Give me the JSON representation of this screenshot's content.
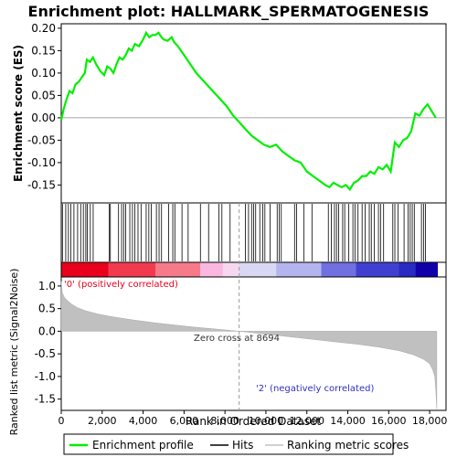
{
  "chart_data": {
    "type": "line",
    "title": "Enrichment plot: HALLMARK_SPERMATOGENESIS",
    "top_panel": {
      "ylabel": "Enrichment score (ES)",
      "ylim": [
        -0.19,
        0.21
      ],
      "yticks": [
        "0.20",
        "0.15",
        "0.10",
        "0.05",
        "0.00",
        "-0.05",
        "-0.10",
        "-0.15"
      ],
      "ytick_values": [
        0.2,
        0.15,
        0.1,
        0.05,
        0.0,
        -0.05,
        -0.1,
        -0.15
      ],
      "es_profile": {
        "name": "Enrichment profile",
        "x": [
          0,
          120,
          250,
          400,
          550,
          700,
          850,
          1000,
          1150,
          1250,
          1400,
          1550,
          1700,
          1900,
          2100,
          2250,
          2400,
          2550,
          2700,
          2850,
          3000,
          3150,
          3300,
          3450,
          3600,
          3800,
          4000,
          4150,
          4300,
          4450,
          4600,
          4750,
          4900,
          5000,
          5200,
          5400,
          5500,
          5700,
          6000,
          6300,
          6600,
          6900,
          7200,
          7500,
          7800,
          8100,
          8400,
          8700,
          9000,
          9300,
          9600,
          9900,
          10200,
          10500,
          10800,
          11100,
          11400,
          11700,
          12000,
          12300,
          12600,
          12900,
          13100,
          13300,
          13500,
          13700,
          13900,
          14100,
          14300,
          14500,
          14700,
          14900,
          15100,
          15300,
          15500,
          15700,
          15900,
          16100,
          16300,
          16500,
          16700,
          16900,
          17100,
          17300,
          17500,
          17700,
          17900,
          18100,
          18300
        ],
        "y": [
          -0.005,
          0.02,
          0.04,
          0.06,
          0.055,
          0.075,
          0.08,
          0.09,
          0.1,
          0.13,
          0.125,
          0.135,
          0.12,
          0.105,
          0.095,
          0.115,
          0.11,
          0.1,
          0.12,
          0.135,
          0.13,
          0.14,
          0.155,
          0.15,
          0.165,
          0.16,
          0.175,
          0.19,
          0.18,
          0.185,
          0.185,
          0.19,
          0.18,
          0.175,
          0.172,
          0.18,
          0.17,
          0.16,
          0.14,
          0.12,
          0.1,
          0.085,
          0.07,
          0.055,
          0.04,
          0.025,
          0.005,
          -0.01,
          -0.025,
          -0.04,
          -0.05,
          -0.06,
          -0.065,
          -0.06,
          -0.075,
          -0.085,
          -0.095,
          -0.1,
          -0.12,
          -0.13,
          -0.14,
          -0.15,
          -0.155,
          -0.145,
          -0.15,
          -0.155,
          -0.15,
          -0.16,
          -0.145,
          -0.14,
          -0.13,
          -0.13,
          -0.12,
          -0.125,
          -0.11,
          -0.115,
          -0.105,
          -0.12,
          -0.055,
          -0.065,
          -0.05,
          -0.045,
          -0.03,
          0.01,
          0.005,
          0.02,
          0.03,
          0.015,
          0.0
        ],
        "color": "#00ee00"
      }
    },
    "hits": {
      "name": "Hits",
      "positions": [
        60,
        220,
        350,
        470,
        620,
        800,
        950,
        1080,
        1200,
        1270,
        1420,
        1560,
        2350,
        2400,
        2800,
        2950,
        3050,
        3150,
        3350,
        3480,
        3600,
        3750,
        3900,
        4150,
        4280,
        4400,
        4650,
        4780,
        4900,
        5250,
        5450,
        5550,
        5900,
        6200,
        6800,
        7200,
        7700,
        7850,
        8250,
        9000,
        9150,
        9300,
        9400,
        9500,
        9700,
        9850,
        9950,
        10200,
        10550,
        10650,
        10750,
        11400,
        11500,
        11850,
        12250,
        13050,
        13200,
        13350,
        13450,
        13550,
        13750,
        13850,
        14050,
        14250,
        14350,
        14500,
        14700,
        14850,
        15050,
        15150,
        15300,
        15500,
        15600,
        15750,
        16200,
        16300,
        16450,
        16750,
        16950,
        17050,
        17150,
        17250,
        17600,
        17700,
        17800
      ]
    },
    "ranked_metric": {
      "name": "Ranking metric scores",
      "ylabel": "Ranked list metric (Signal2Noise)",
      "ylim": [
        -1.75,
        1.2
      ],
      "yticks": [
        "1.0",
        "0.5",
        "0.0",
        "-0.5",
        "-1.0",
        "-1.5"
      ],
      "ytick_values": [
        1.0,
        0.5,
        0.0,
        -0.5,
        -1.0,
        -1.5
      ],
      "x": [
        0,
        50,
        150,
        300,
        500,
        800,
        1200,
        1800,
        2500,
        3500,
        4500,
        5500,
        6500,
        7500,
        8694,
        9500,
        10500,
        11500,
        12500,
        13500,
        14500,
        15500,
        16500,
        17200,
        17700,
        18000,
        18150,
        18250,
        18300,
        18350
      ],
      "y": [
        1.1,
        0.85,
        0.75,
        0.68,
        0.6,
        0.52,
        0.45,
        0.38,
        0.32,
        0.25,
        0.19,
        0.14,
        0.09,
        0.05,
        0.0,
        -0.04,
        -0.09,
        -0.14,
        -0.19,
        -0.24,
        -0.29,
        -0.35,
        -0.43,
        -0.52,
        -0.62,
        -0.72,
        -0.85,
        -1.0,
        -1.3,
        -1.72
      ],
      "color": "#c0c0c0"
    },
    "xaxis": {
      "label": "Rank in Ordered Dataset",
      "xlim": [
        0,
        18800
      ],
      "ticks": [
        "0",
        "2,000",
        "4,000",
        "6,000",
        "8,000",
        "10,000",
        "12,000",
        "14,000",
        "16,000",
        "18,000"
      ],
      "tick_values": [
        0,
        2000,
        4000,
        6000,
        8000,
        10000,
        12000,
        14000,
        16000,
        18000
      ]
    },
    "heatmap_bar": {
      "xmax": 18400,
      "segments": [
        {
          "to": 2300,
          "color": "#e8001c"
        },
        {
          "to": 4600,
          "color": "#f23a4e"
        },
        {
          "to": 6800,
          "color": "#f77a8a"
        },
        {
          "to": 7900,
          "color": "#fab8e0"
        },
        {
          "to": 8694,
          "color": "#f5d8f0"
        },
        {
          "to": 10500,
          "color": "#d8d8f5"
        },
        {
          "to": 12700,
          "color": "#b4b4ee"
        },
        {
          "to": 14400,
          "color": "#7070e0"
        },
        {
          "to": 16500,
          "color": "#4040d0"
        },
        {
          "to": 17300,
          "color": "#2a2ac4"
        },
        {
          "to": 18400,
          "color": "#1000aa"
        }
      ]
    },
    "annotations": {
      "zero_cross_label": "Zero cross at 8694",
      "zero_cross": 8694,
      "positive_label": "'0' (positively correlated)",
      "negative_label": "'2' (negatively correlated)"
    },
    "legend": {
      "position": "bottom",
      "entries": [
        {
          "label": "Enrichment profile",
          "color": "#00ee00"
        },
        {
          "label": "Hits",
          "color": "#000000"
        },
        {
          "label": "Ranking metric scores",
          "color": "#c0c0c0"
        }
      ]
    }
  }
}
